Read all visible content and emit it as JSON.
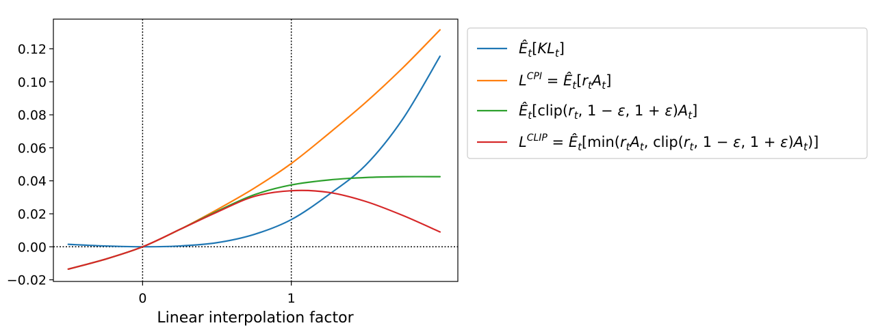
{
  "chart_data": {
    "type": "line",
    "xlabel": "Linear interpolation factor",
    "ylabel": "",
    "xlim": [
      -0.6,
      2.12
    ],
    "ylim": [
      -0.021,
      0.138
    ],
    "x_ticks": [
      0,
      1
    ],
    "x_tick_labels": [
      "0",
      "1"
    ],
    "y_ticks": [
      -0.02,
      0.0,
      0.02,
      0.04,
      0.06,
      0.08,
      0.1,
      0.12
    ],
    "y_tick_labels": [
      "−0.02",
      "0.00",
      "0.02",
      "0.04",
      "0.06",
      "0.08",
      "0.10",
      "0.12"
    ],
    "reference_lines": {
      "vertical_x": [
        0,
        1
      ],
      "horizontal_y": [
        0
      ],
      "style": "dotted"
    },
    "grid": false,
    "legend_position": "outside-right",
    "x": [
      -0.5,
      -0.25,
      0.0,
      0.25,
      0.5,
      0.75,
      1.0,
      1.25,
      1.5,
      1.75,
      2.0
    ],
    "series": [
      {
        "name": "Ê_t[KL_t]",
        "color": "#1f77b4",
        "values": [
          0.0015,
          0.0005,
          0.0,
          0.0005,
          0.0025,
          0.0075,
          0.0165,
          0.0315,
          0.0495,
          0.0775,
          0.1155
        ]
      },
      {
        "name": "L^CPI = Ê_t[r_t A_t]",
        "color": "#ff7f0e",
        "values": [
          -0.0135,
          -0.0075,
          0.0,
          0.0105,
          0.0225,
          0.0355,
          0.0505,
          0.0685,
          0.0875,
          0.1085,
          0.1315
        ]
      },
      {
        "name": "Ê_t[clip(r_t, 1 − ε, 1 + ε)A_t]",
        "color": "#2ca02c",
        "values": [
          -0.0135,
          -0.0075,
          0.0,
          0.0105,
          0.0215,
          0.0315,
          0.0375,
          0.0405,
          0.042,
          0.0425,
          0.0425
        ]
      },
      {
        "name": "L^CLIP = Ê_t[min(r_t A_t, clip(r_t, 1 − ε, 1 + ε)A_t)]",
        "color": "#d62728",
        "values": [
          -0.0135,
          -0.0075,
          0.0,
          0.0105,
          0.021,
          0.0305,
          0.034,
          0.033,
          0.0275,
          0.019,
          0.009
        ]
      }
    ]
  }
}
